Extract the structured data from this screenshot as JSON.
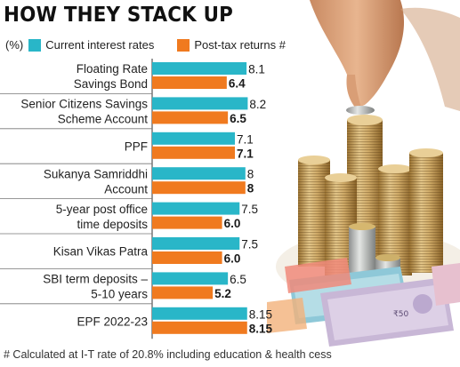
{
  "chart_data": {
    "type": "bar",
    "orientation": "horizontal",
    "title": "HOW THEY STACK UP",
    "unit_label": "(%)",
    "categories": [
      [
        "Floating Rate",
        "Savings Bond"
      ],
      [
        "Senior Citizens Savings",
        "Scheme Account"
      ],
      [
        "PPF"
      ],
      [
        "Sukanya Samriddhi",
        "Account"
      ],
      [
        "5-year post office",
        "time deposits"
      ],
      [
        "Kisan Vikas Patra"
      ],
      [
        "SBI term deposits –",
        "5-10 years"
      ],
      [
        "EPF 2022-23"
      ]
    ],
    "series": [
      {
        "name": "Current interest rates",
        "color": "#29b6c8",
        "values": [
          8.1,
          8.2,
          7.1,
          8,
          7.5,
          7.5,
          6.5,
          8.15
        ],
        "labels": [
          "8.1",
          "8.2",
          "7.1",
          "8",
          "7.5",
          "7.5",
          "6.5",
          "8.15"
        ]
      },
      {
        "name": "Post-tax returns #",
        "color": "#f07a1f",
        "values": [
          6.4,
          6.5,
          7.1,
          8,
          6.0,
          6.0,
          5.2,
          8.15
        ],
        "labels": [
          "6.4",
          "6.5",
          "7.1",
          "8",
          "6.0",
          "6.0",
          "5.2",
          "8.15"
        ]
      }
    ],
    "footnote": "# Calculated at I-T rate of 20.8% including education & health cess"
  }
}
